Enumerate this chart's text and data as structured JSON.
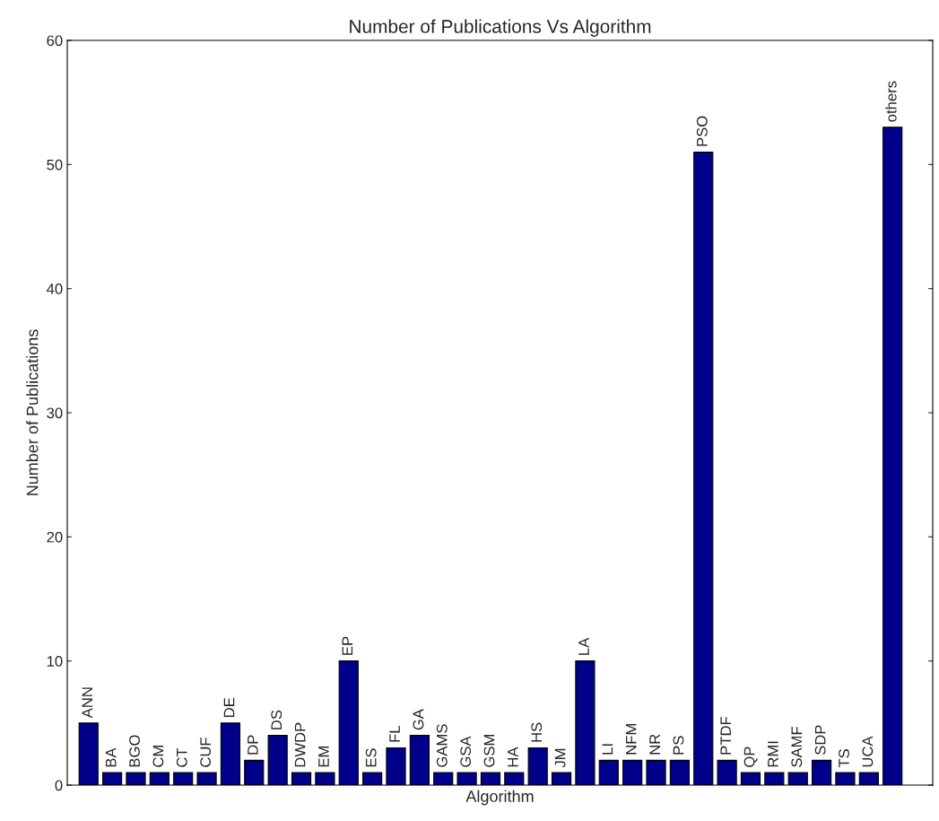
{
  "chart_data": {
    "type": "bar",
    "title": "Number of Publications Vs Algorithm",
    "xlabel": "Algorithm",
    "ylabel": "Number of Publications",
    "categories": [
      "ANN",
      "BA",
      "BGO",
      "CM",
      "CT",
      "CUF",
      "DE",
      "DP",
      "DS",
      "DWDP",
      "EM",
      "EP",
      "ES",
      "FL",
      "GA",
      "GAMS",
      "GSA",
      "GSM",
      "HA",
      "HS",
      "JM",
      "LA",
      "LI",
      "NFM",
      "NR",
      "PS",
      "PSO",
      "PTDF",
      "QP",
      "RMI",
      "SAMF",
      "SDP",
      "TS",
      "UCA",
      "others"
    ],
    "values": [
      5,
      1,
      1,
      1,
      1,
      1,
      5,
      2,
      4,
      1,
      1,
      10,
      1,
      3,
      4,
      1,
      1,
      1,
      1,
      3,
      1,
      10,
      2,
      2,
      2,
      2,
      51,
      2,
      1,
      1,
      1,
      2,
      1,
      1,
      53
    ],
    "color": "#00008b",
    "ylim": [
      0,
      60
    ],
    "yticks": [
      0,
      10,
      20,
      30,
      40,
      50,
      60
    ],
    "grid": false,
    "legend": false
  }
}
